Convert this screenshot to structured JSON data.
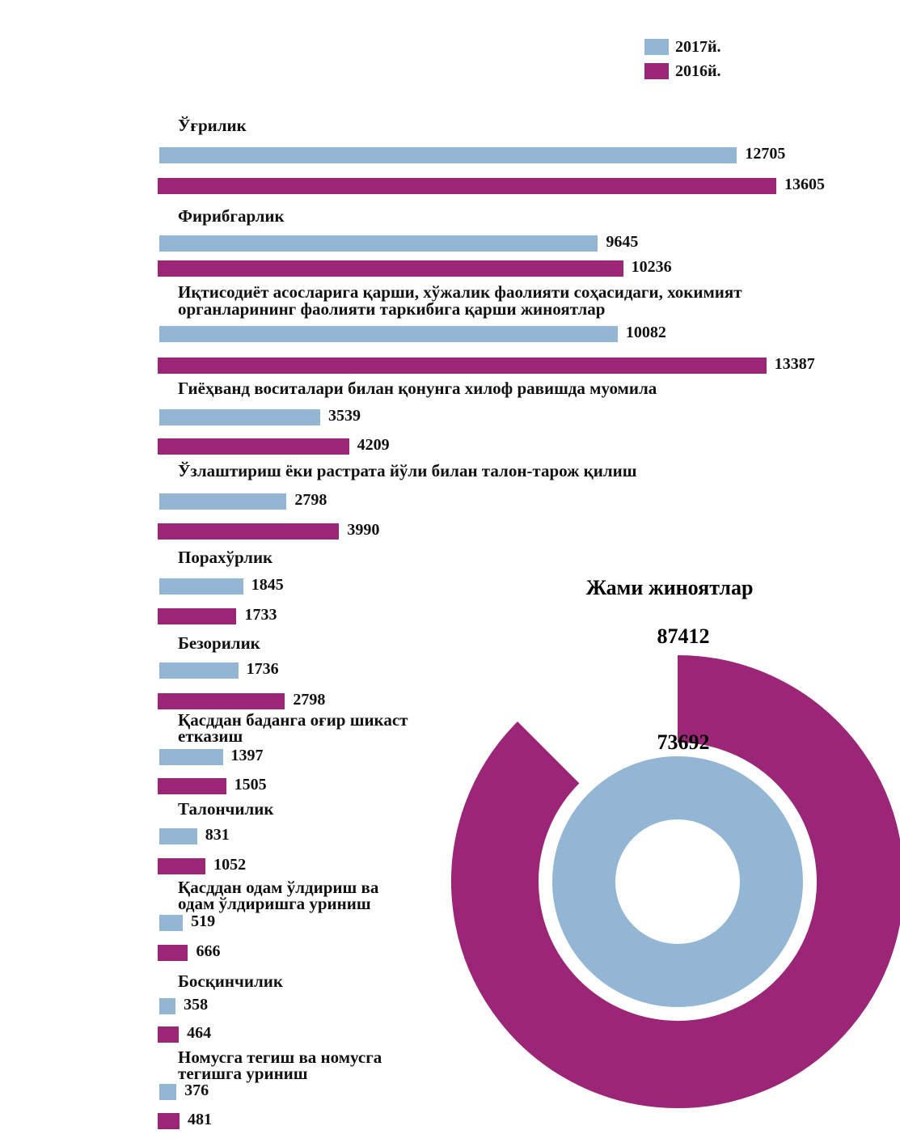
{
  "chart_data": [
    {
      "type": "bar",
      "orientation": "horizontal",
      "legend": "top-right",
      "categories": [
        "Ўғрилик",
        "Фирибгарлик",
        "Иқтисодиёт асосларига қарши, хўжалик фаолияти соҳасидаги, хокимият органларининг фаолияти таркибига қарши жиноятлар",
        "Гиёҳванд воситалари билан қонунга хилоф равишда муомила",
        "Ўзлаштириш ёки растрата йўли билан талон-тарож қилиш",
        "Порахўрлик",
        "Безорилик",
        "Қасддан баданга оғир шикаст етказиш",
        "Талончилик",
        "Қасддан одам ўлдириш ва одам ўлдиришга уриниш",
        "Босқинчилик",
        "Номусга тегиш ва номусга тегишга уриниш"
      ],
      "series": [
        {
          "name": "2017й.",
          "color": "#93b6d4",
          "values": [
            12705,
            9645,
            10082,
            3539,
            2798,
            1845,
            1736,
            1397,
            831,
            519,
            358,
            376
          ]
        },
        {
          "name": "2016й.",
          "color": "#9b2577",
          "values": [
            13605,
            10236,
            13387,
            4209,
            3990,
            1733,
            2798,
            1505,
            1052,
            666,
            464,
            481
          ]
        }
      ]
    },
    {
      "type": "donut",
      "title": "Жами жиноятлар",
      "values": [
        87412,
        73692
      ],
      "colors": [
        "#9b2577",
        "#93b6d4"
      ]
    }
  ]
}
